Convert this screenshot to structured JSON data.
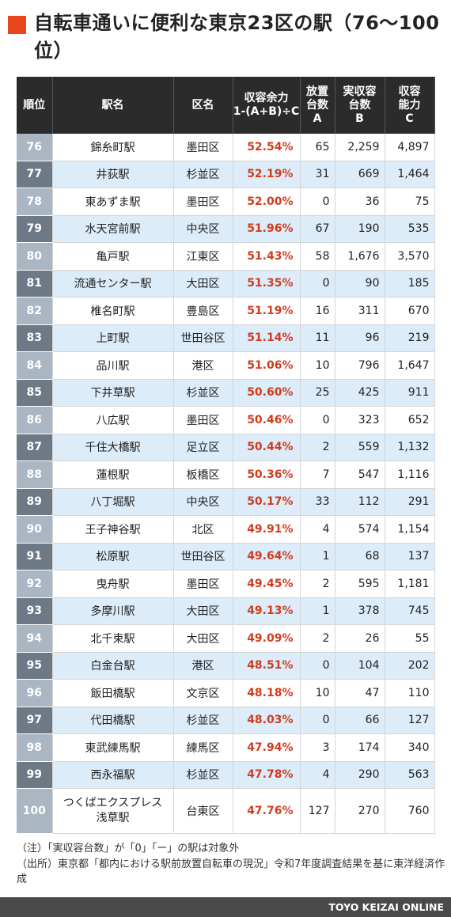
{
  "title": "自転車通いに便利な東京23区の駅（76〜100位）",
  "table": {
    "headers": {
      "rank": "順位",
      "name": "駅名",
      "ward": "区名",
      "rate_l1": "収容余力",
      "rate_l2": "1-(A+B)÷C",
      "a_l1": "放置",
      "a_l2": "台数",
      "a_l3": "A",
      "b_l1": "実収容",
      "b_l2": "台数",
      "b_l3": "B",
      "c_l1": "収容",
      "c_l2": "能力",
      "c_l3": "C"
    },
    "rows": [
      {
        "rank": "76",
        "name": "錦糸町駅",
        "ward": "墨田区",
        "rate": "52.54%",
        "a": "65",
        "b": "2,259",
        "c": "4,897"
      },
      {
        "rank": "77",
        "name": "井荻駅",
        "ward": "杉並区",
        "rate": "52.19%",
        "a": "31",
        "b": "669",
        "c": "1,464"
      },
      {
        "rank": "78",
        "name": "東あずま駅",
        "ward": "墨田区",
        "rate": "52.00%",
        "a": "0",
        "b": "36",
        "c": "75"
      },
      {
        "rank": "79",
        "name": "水天宮前駅",
        "ward": "中央区",
        "rate": "51.96%",
        "a": "67",
        "b": "190",
        "c": "535"
      },
      {
        "rank": "80",
        "name": "亀戸駅",
        "ward": "江東区",
        "rate": "51.43%",
        "a": "58",
        "b": "1,676",
        "c": "3,570"
      },
      {
        "rank": "81",
        "name": "流通センター駅",
        "ward": "大田区",
        "rate": "51.35%",
        "a": "0",
        "b": "90",
        "c": "185"
      },
      {
        "rank": "82",
        "name": "椎名町駅",
        "ward": "豊島区",
        "rate": "51.19%",
        "a": "16",
        "b": "311",
        "c": "670"
      },
      {
        "rank": "83",
        "name": "上町駅",
        "ward": "世田谷区",
        "rate": "51.14%",
        "a": "11",
        "b": "96",
        "c": "219"
      },
      {
        "rank": "84",
        "name": "品川駅",
        "ward": "港区",
        "rate": "51.06%",
        "a": "10",
        "b": "796",
        "c": "1,647"
      },
      {
        "rank": "85",
        "name": "下井草駅",
        "ward": "杉並区",
        "rate": "50.60%",
        "a": "25",
        "b": "425",
        "c": "911"
      },
      {
        "rank": "86",
        "name": "八広駅",
        "ward": "墨田区",
        "rate": "50.46%",
        "a": "0",
        "b": "323",
        "c": "652"
      },
      {
        "rank": "87",
        "name": "千住大橋駅",
        "ward": "足立区",
        "rate": "50.44%",
        "a": "2",
        "b": "559",
        "c": "1,132"
      },
      {
        "rank": "88",
        "name": "蓮根駅",
        "ward": "板橋区",
        "rate": "50.36%",
        "a": "7",
        "b": "547",
        "c": "1,116"
      },
      {
        "rank": "89",
        "name": "八丁堀駅",
        "ward": "中央区",
        "rate": "50.17%",
        "a": "33",
        "b": "112",
        "c": "291"
      },
      {
        "rank": "90",
        "name": "王子神谷駅",
        "ward": "北区",
        "rate": "49.91%",
        "a": "4",
        "b": "574",
        "c": "1,154"
      },
      {
        "rank": "91",
        "name": "松原駅",
        "ward": "世田谷区",
        "rate": "49.64%",
        "a": "1",
        "b": "68",
        "c": "137"
      },
      {
        "rank": "92",
        "name": "曳舟駅",
        "ward": "墨田区",
        "rate": "49.45%",
        "a": "2",
        "b": "595",
        "c": "1,181"
      },
      {
        "rank": "93",
        "name": "多摩川駅",
        "ward": "大田区",
        "rate": "49.13%",
        "a": "1",
        "b": "378",
        "c": "745"
      },
      {
        "rank": "94",
        "name": "北千束駅",
        "ward": "大田区",
        "rate": "49.09%",
        "a": "2",
        "b": "26",
        "c": "55"
      },
      {
        "rank": "95",
        "name": "白金台駅",
        "ward": "港区",
        "rate": "48.51%",
        "a": "0",
        "b": "104",
        "c": "202"
      },
      {
        "rank": "96",
        "name": "飯田橋駅",
        "ward": "文京区",
        "rate": "48.18%",
        "a": "10",
        "b": "47",
        "c": "110"
      },
      {
        "rank": "97",
        "name": "代田橋駅",
        "ward": "杉並区",
        "rate": "48.03%",
        "a": "0",
        "b": "66",
        "c": "127"
      },
      {
        "rank": "98",
        "name": "東武練馬駅",
        "ward": "練馬区",
        "rate": "47.94%",
        "a": "3",
        "b": "174",
        "c": "340"
      },
      {
        "rank": "99",
        "name": "西永福駅",
        "ward": "杉並区",
        "rate": "47.78%",
        "a": "4",
        "b": "290",
        "c": "563"
      }
    ],
    "last_row": {
      "rank": "100",
      "name_l1": "つくばエクスプレス",
      "name_l2": "浅草駅",
      "ward": "台東区",
      "rate": "47.76%",
      "a": "127",
      "b": "270",
      "c": "760"
    }
  },
  "notes": {
    "note": "（注）「実収容台数」が「0」「ー」の駅は対象外",
    "source": "（出所）東京都「都内における駅前放置自転車の現況」令和7年度調査結果を基に東洋経済作成"
  },
  "footer": "TOYO KEIZAI ONLINE",
  "colors": {
    "accent": "#e8461e",
    "header_bg": "#2b2b2b",
    "row_alt": "#dcecf8",
    "rate_text": "#d23c1e"
  }
}
